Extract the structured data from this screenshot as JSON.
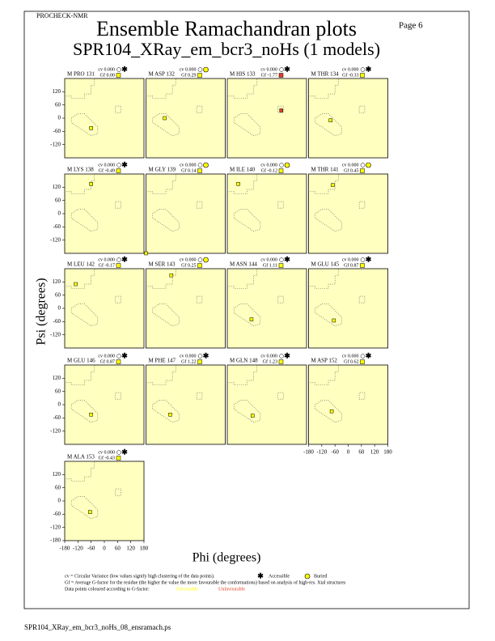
{
  "header": {
    "program": "PROCHECK-NMR",
    "page": "Page  6",
    "title": "Ensemble Ramachandran plots",
    "subtitle": "SPR104_XRay_em_bcr3_noHs (1 models)"
  },
  "axes": {
    "xlim": [
      -180,
      180
    ],
    "ylim": [
      -180,
      180
    ],
    "xticks": [
      -180,
      -120,
      -60,
      0,
      60,
      120,
      180
    ],
    "yticks": [
      -180,
      -120,
      -60,
      0,
      60,
      120
    ],
    "x_label": "Phi (degrees)",
    "y_label": "Psi (degrees)",
    "background": "#ffffc0"
  },
  "chart_data": [
    {
      "type": "scatter",
      "title": "M PRO 131",
      "cv": "cv 0.000",
      "gf": "Gf 0.00",
      "buried": false,
      "color": "#ffff00",
      "x": [
        -60
      ],
      "values": [
        -45
      ]
    },
    {
      "type": "scatter",
      "title": "M ASP 132",
      "cv": "cv 0.000",
      "gf": "Gf 0.29",
      "buried": true,
      "color": "#ffff00",
      "x": [
        -95
      ],
      "values": [
        0
      ]
    },
    {
      "type": "scatter",
      "title": "M HIS 133",
      "cv": "cv 0.000",
      "gf": "Gf -1.77",
      "buried": false,
      "color": "#e04020",
      "x": [
        65
      ],
      "values": [
        35
      ]
    },
    {
      "type": "scatter",
      "title": "M THR 134",
      "cv": "cv 0.000",
      "gf": "Gf -0.33",
      "buried": false,
      "color": "#ffff00",
      "x": [
        -80
      ],
      "values": [
        -10
      ]
    },
    {
      "type": "scatter",
      "title": "M LYS 138",
      "cv": "cv 0.000",
      "gf": "Gf -0.49",
      "buried": false,
      "color": "#ffff00",
      "x": [
        -60
      ],
      "values": [
        135
      ]
    },
    {
      "type": "scatter",
      "title": "M GLY 139",
      "cv": "cv 0.000",
      "gf": "Gf 0.14",
      "buried": true,
      "color": "#ffff00",
      "x": [
        -180
      ],
      "values": [
        -180
      ]
    },
    {
      "type": "scatter",
      "title": "M ILE 140",
      "cv": "cv 0.000",
      "gf": "Gf -0.12",
      "buried": true,
      "color": "#ffff00",
      "x": [
        -130
      ],
      "values": [
        135
      ]
    },
    {
      "type": "scatter",
      "title": "M THR 141",
      "cv": "cv 0.000",
      "gf": "Gf 0.45",
      "buried": true,
      "color": "#ffff00",
      "x": [
        -70
      ],
      "values": [
        130
      ]
    },
    {
      "type": "scatter",
      "title": "M LEU 142",
      "cv": "cv 0.000",
      "gf": "Gf -0.17",
      "buried": false,
      "color": "#ffff00",
      "x": [
        -130
      ],
      "values": [
        110
      ]
    },
    {
      "type": "scatter",
      "title": "M SER 143",
      "cv": "cv 0.000",
      "gf": "Gf 0.25",
      "buried": true,
      "color": "#ffff00",
      "x": [
        -65
      ],
      "values": [
        150
      ]
    },
    {
      "type": "scatter",
      "title": "M ASN 144",
      "cv": "cv 0.000",
      "gf": "Gf 1.11",
      "buried": false,
      "color": "#ffff00",
      "x": [
        -70
      ],
      "values": [
        -50
      ]
    },
    {
      "type": "scatter",
      "title": "M GLU 145",
      "cv": "cv 0.000",
      "gf": "Gf 0.87",
      "buried": false,
      "color": "#ffff00",
      "x": [
        -65
      ],
      "values": [
        -55
      ]
    },
    {
      "type": "scatter",
      "title": "M GLU 146",
      "cv": "cv 0.000",
      "gf": "Gf 0.87",
      "buried": false,
      "color": "#ffff00",
      "x": [
        -60
      ],
      "values": [
        -45
      ]
    },
    {
      "type": "scatter",
      "title": "M PHE 147",
      "cv": "cv 0.000",
      "gf": "Gf 1.22",
      "buried": false,
      "color": "#ffff00",
      "x": [
        -70
      ],
      "values": [
        -45
      ]
    },
    {
      "type": "scatter",
      "title": "M GLN 148",
      "cv": "cv 0.000",
      "gf": "Gf 1.23",
      "buried": false,
      "color": "#ffff00",
      "x": [
        -65
      ],
      "values": [
        -50
      ]
    },
    {
      "type": "scatter",
      "title": "M ASP 152",
      "cv": "cv 0.000",
      "gf": "Gf 0.62",
      "buried": false,
      "color": "#ffff00",
      "x": [
        -75
      ],
      "values": [
        -30
      ]
    },
    {
      "type": "scatter",
      "title": "M ALA 153",
      "cv": "cv 0.000",
      "gf": "Gf -0.43",
      "buried": false,
      "color": "#ffff00",
      "x": [
        -65
      ],
      "values": [
        -50
      ]
    }
  ],
  "footer": {
    "cv_note": "cv = Circular Variance (low values signify high clustering of the data points).",
    "accessible": "Accessible",
    "buried": "Buried",
    "gf_note": "Gf = Average G-factor for the residue (the higher the value the more favourable the conformations) based on analysis of high-res. Xtal structures",
    "colour_note": "Data points coloured according to G-factor:",
    "favourable": "Favourable",
    "favourable_color": "#ffff00",
    "unfavourable": "Unfavourable",
    "unfavourable_color": "#e04020",
    "filename": "SPR104_XRay_em_bcr3_noHs_08_ensramach.ps"
  }
}
